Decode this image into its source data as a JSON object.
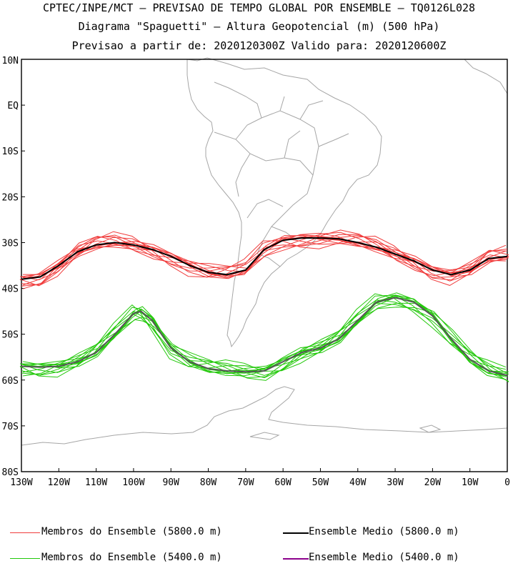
{
  "title": {
    "line1": "CPTEC/INPE/MCT — PREVISAO DE TEMPO GLOBAL POR ENSEMBLE — TQ0126L028",
    "line2": "Diagrama \"Spaguetti\" — Altura Geopotencial (m) (500 hPa)",
    "line3": "Previsao a partir de: 2020120300Z  Valido para: 2020120600Z"
  },
  "axes": {
    "lon_ticks": [
      "130W",
      "120W",
      "110W",
      "100W",
      "90W",
      "80W",
      "70W",
      "60W",
      "50W",
      "40W",
      "30W",
      "20W",
      "10W",
      "0"
    ],
    "lat_ticks": [
      "10N",
      "EQ",
      "10S",
      "20S",
      "30S",
      "40S",
      "50S",
      "60S",
      "70S",
      "80S"
    ],
    "lon_range": [
      -130,
      0
    ],
    "lat_range": [
      -80,
      10
    ]
  },
  "colors": {
    "member_5800": "#f03c3c",
    "mean_5800": "#000000",
    "member_5400": "#22c80a",
    "mean_5400": "#8c008c",
    "coast": "#a6a6a6"
  },
  "legend": [
    {
      "label": "Membros do Ensemble (5800.0 m)",
      "color": "#f03c3c"
    },
    {
      "label": "Ensemble Medio (5800.0 m)",
      "color": "#000000"
    },
    {
      "label": "Membros do Ensemble (5400.0 m)",
      "color": "#22c80a"
    },
    {
      "label": "Ensemble Medio (5400.0 m)",
      "color": "#8c008c"
    }
  ],
  "chart_data": {
    "type": "line",
    "xlabel": "",
    "ylabel": "",
    "xlim": [
      -130,
      0
    ],
    "ylim": [
      -80,
      10
    ],
    "grid": false,
    "series": [
      {
        "name": "Ensemble Medio (5800.0 m)",
        "x": [
          -130,
          -125,
          -120,
          -115,
          -110,
          -105,
          -100,
          -95,
          -90,
          -85,
          -80,
          -75,
          -70,
          -65,
          -60,
          -55,
          -50,
          -45,
          -40,
          -35,
          -30,
          -25,
          -20,
          -15,
          -10,
          -5,
          0
        ],
        "y": [
          -38,
          -37.5,
          -35,
          -32,
          -30.5,
          -30,
          -30.5,
          -31.5,
          -33,
          -35,
          -36.5,
          -37,
          -36,
          -31.5,
          -29.5,
          -29,
          -29,
          -29.2,
          -30,
          -31,
          -32.5,
          -34,
          -36,
          -37,
          -36,
          -33.5,
          -33
        ]
      },
      {
        "name": "Ensemble Medio (5400.0 m)",
        "x": [
          -130,
          -125,
          -120,
          -115,
          -110,
          -105,
          -100,
          -98,
          -95,
          -90,
          -85,
          -80,
          -75,
          -70,
          -65,
          -60,
          -55,
          -50,
          -45,
          -40,
          -35,
          -30,
          -25,
          -20,
          -15,
          -10,
          -5,
          0
        ],
        "y": [
          -57,
          -57.2,
          -57,
          -56,
          -54,
          -50,
          -45.5,
          -45,
          -47,
          -53,
          -56,
          -57.5,
          -58,
          -58.2,
          -58,
          -56,
          -54,
          -53,
          -51,
          -47,
          -43,
          -42,
          -43,
          -46,
          -51,
          -55.5,
          -58,
          -59
        ]
      }
    ]
  }
}
